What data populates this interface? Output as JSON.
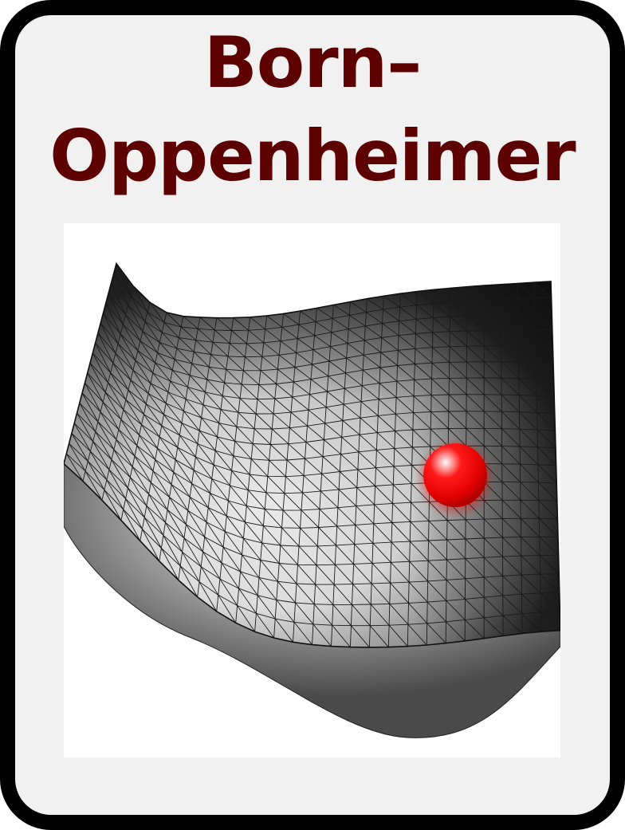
{
  "card": {
    "title_line1": "Born–",
    "title_line2": "Oppenheimer"
  },
  "colors": {
    "title": "#5c0000",
    "card_background": "#f1f1f1",
    "border": "#000000",
    "sphere": "#ff0000"
  },
  "illustration": {
    "surface": "potential-energy-surface",
    "marker": "red-sphere"
  }
}
